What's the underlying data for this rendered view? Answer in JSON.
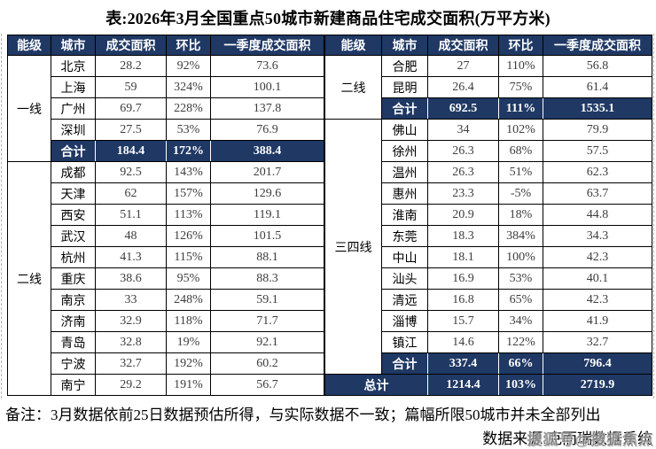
{
  "chart_data": {
    "type": "table",
    "title": "表:2026年3月全国重点50城市新建商品住宅成交面积(万平方米)",
    "columns": [
      "能级",
      "城市",
      "成交面积",
      "环比",
      "一季度成交面积"
    ],
    "tables": {
      "left": {
        "groups": [
          {
            "tier": "一线",
            "rows": [
              {
                "city": "北京",
                "area": "28.2",
                "mom": "92%",
                "q1": "73.6"
              },
              {
                "city": "上海",
                "area": "59",
                "mom": "324%",
                "q1": "100.1"
              },
              {
                "city": "广州",
                "area": "69.7",
                "mom": "228%",
                "q1": "137.8"
              },
              {
                "city": "深圳",
                "area": "27.5",
                "mom": "53%",
                "q1": "76.9"
              },
              {
                "city": "合计",
                "area": "184.4",
                "mom": "172%",
                "q1": "388.4",
                "total": true
              }
            ]
          },
          {
            "tier": "二线",
            "rows": [
              {
                "city": "成都",
                "area": "92.5",
                "mom": "143%",
                "q1": "201.7"
              },
              {
                "city": "天津",
                "area": "62",
                "mom": "157%",
                "q1": "129.6"
              },
              {
                "city": "西安",
                "area": "51.1",
                "mom": "113%",
                "q1": "119.1"
              },
              {
                "city": "武汉",
                "area": "48",
                "mom": "126%",
                "q1": "101.5"
              },
              {
                "city": "杭州",
                "area": "41.3",
                "mom": "115%",
                "q1": "88.1"
              },
              {
                "city": "重庆",
                "area": "38.6",
                "mom": "95%",
                "q1": "88.3"
              },
              {
                "city": "南京",
                "area": "33",
                "mom": "248%",
                "q1": "59.1"
              },
              {
                "city": "济南",
                "area": "32.9",
                "mom": "118%",
                "q1": "71.7"
              },
              {
                "city": "青岛",
                "area": "32.8",
                "mom": "19%",
                "q1": "92.1"
              },
              {
                "city": "宁波",
                "area": "32.7",
                "mom": "192%",
                "q1": "60.2"
              },
              {
                "city": "南宁",
                "area": "29.2",
                "mom": "191%",
                "q1": "56.7"
              }
            ]
          }
        ]
      },
      "right": {
        "groups": [
          {
            "tier": "二线",
            "rows": [
              {
                "city": "合肥",
                "area": "27",
                "mom": "110%",
                "q1": "56.8"
              },
              {
                "city": "昆明",
                "area": "26.4",
                "mom": "75%",
                "q1": "61.4"
              },
              {
                "city": "合计",
                "area": "692.5",
                "mom": "111%",
                "q1": "1535.1",
                "total": true
              }
            ]
          },
          {
            "tier": "三四线",
            "rows": [
              {
                "city": "佛山",
                "area": "34",
                "mom": "102%",
                "q1": "79.9"
              },
              {
                "city": "徐州",
                "area": "26.3",
                "mom": "68%",
                "q1": "57.5"
              },
              {
                "city": "温州",
                "area": "26.3",
                "mom": "51%",
                "q1": "62.3"
              },
              {
                "city": "惠州",
                "area": "23.3",
                "mom": "-5%",
                "q1": "63.7"
              },
              {
                "city": "淮南",
                "area": "20.9",
                "mom": "18%",
                "q1": "44.8"
              },
              {
                "city": "东莞",
                "area": "18.3",
                "mom": "384%",
                "q1": "34.3"
              },
              {
                "city": "中山",
                "area": "18.1",
                "mom": "100%",
                "q1": "42.3"
              },
              {
                "city": "汕头",
                "area": "16.9",
                "mom": "53%",
                "q1": "40.1"
              },
              {
                "city": "清远",
                "area": "16.8",
                "mom": "65%",
                "q1": "42.3"
              },
              {
                "city": "淄博",
                "area": "15.7",
                "mom": "34%",
                "q1": "41.9"
              },
              {
                "city": "镇江",
                "area": "14.6",
                "mom": "122%",
                "q1": "32.7"
              },
              {
                "city": "合计",
                "area": "337.4",
                "mom": "66%",
                "q1": "796.4",
                "total": true
              }
            ]
          }
        ],
        "grand_total": {
          "label": "总计",
          "area": "1214.4",
          "mom": "103%",
          "q1": "2719.9"
        }
      }
    }
  },
  "footer": {
    "note": "备注：3月数据依前25日数据预估所得，与实际数据不一致；篇幅所限50城市并未全部列出",
    "source": "数据来源:克而瑞数据系统",
    "watermark": "搜狐号@搜狐焦点"
  },
  "colors": {
    "navy": "#1f3864",
    "border": "#000000",
    "number_text": "#3d3d3d",
    "watermark_gray": "#8c8c8c"
  }
}
